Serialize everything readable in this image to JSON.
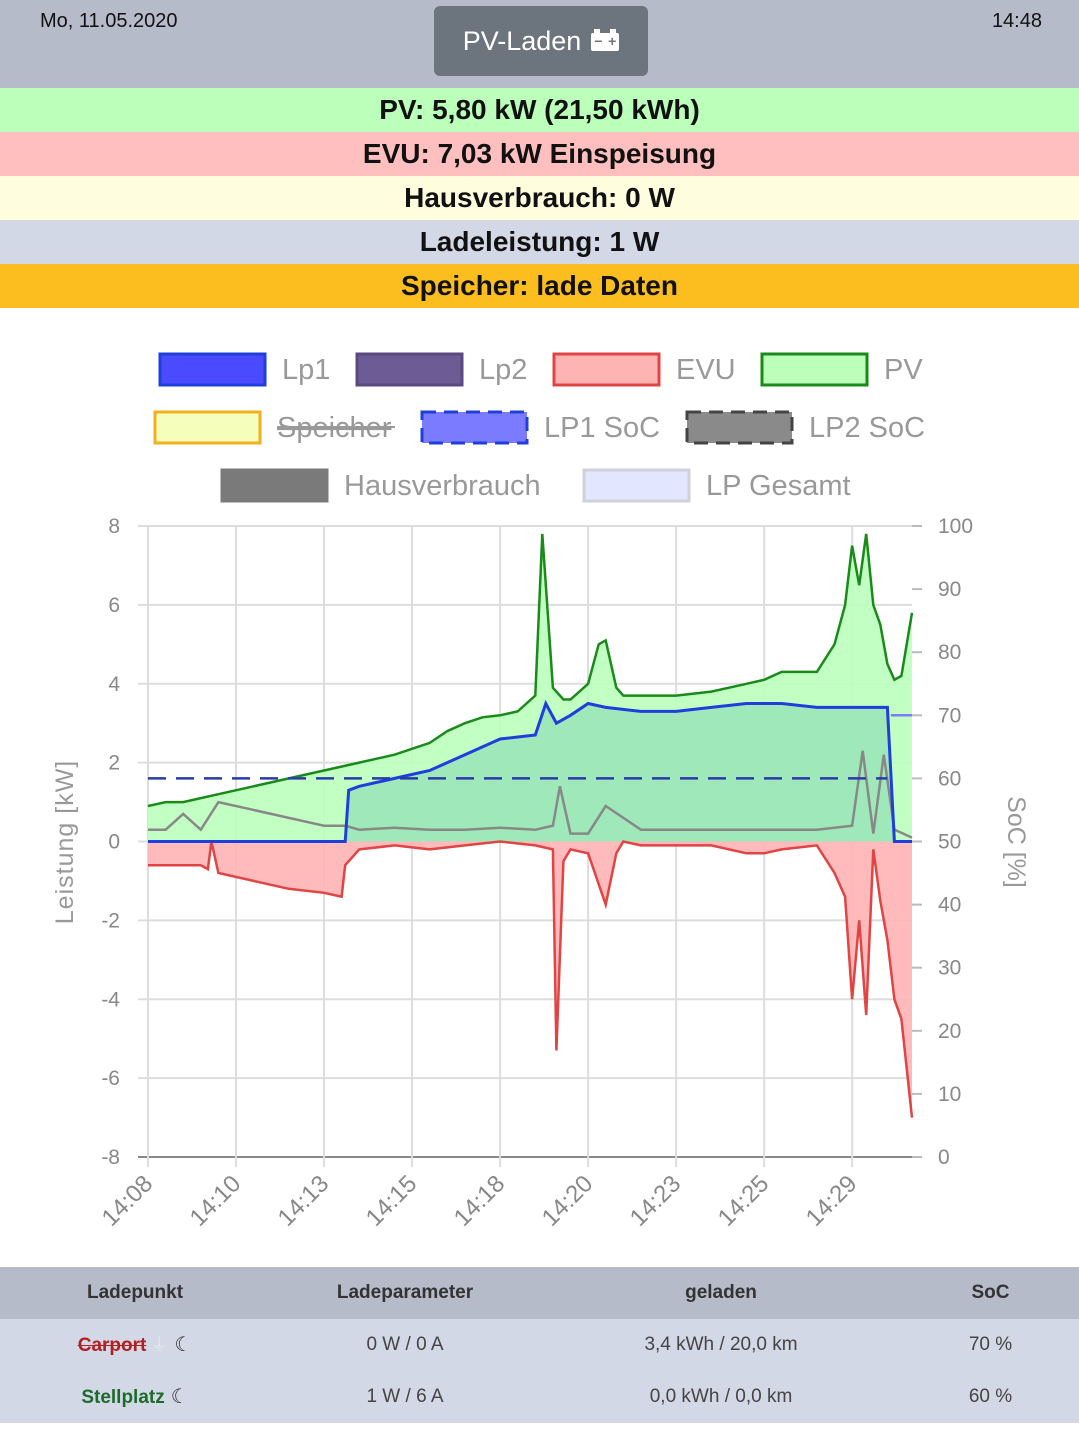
{
  "header": {
    "date": "Mo, 11.05.2020",
    "time": "14:48",
    "mode_label": "PV-Laden"
  },
  "status": {
    "pv": "PV: 5,80 kW (21,50 kWh)",
    "evu": "EVU: 7,03 kW Einspeisung",
    "haus": "Hausverbrauch: 0 W",
    "lade": "Ladeleistung: 1 W",
    "speicher": "Speicher: lade Daten"
  },
  "legend": {
    "lp1": "Lp1",
    "lp2": "Lp2",
    "evu": "EVU",
    "pv": "PV",
    "speicher": "Speicher",
    "lp1soc": "LP1 SoC",
    "lp2soc": "LP2 SoC",
    "haus": "Hausverbrauch",
    "lpges": "LP Gesamt"
  },
  "colors": {
    "lp1": "#1f3fdc",
    "lp2": "#6c5b95",
    "evu": "#e04444",
    "pv": "#1a8a1a",
    "pv_fill": "#bbffbb",
    "evu_fill": "#ffb4b4",
    "lp1_fill": "#9be6b8"
  },
  "chart_data": {
    "type": "line",
    "ylabel": "Leistung [kW]",
    "ylabel_right": "SoC [%]",
    "ylim": [
      -8,
      8
    ],
    "ylim_right": [
      0,
      100
    ],
    "yticks": [
      "8",
      "6",
      "4",
      "2",
      "0",
      "-2",
      "-4",
      "-6",
      "-8"
    ],
    "yticks_right": [
      "100",
      "90",
      "80",
      "70",
      "60",
      "50",
      "40",
      "30",
      "20",
      "10",
      "0"
    ],
    "xticks": [
      "14:08",
      "14:10",
      "14:13",
      "14:15",
      "14:18",
      "14:20",
      "14:23",
      "14:25",
      "14:29"
    ],
    "x_minutes": [
      0,
      2.5,
      5,
      7.5,
      10,
      12.5,
      15,
      17.5,
      20,
      20.95,
      21.7
    ],
    "series": [
      {
        "name": "PV",
        "x": [
          0,
          0.5,
          1,
          1.5,
          2,
          3,
          4,
          5,
          6,
          7,
          8,
          8.5,
          9,
          9.5,
          10,
          10.5,
          11,
          11.2,
          11.5,
          11.8,
          12,
          12.5,
          12.8,
          13,
          13.3,
          13.5,
          14,
          14.5,
          15,
          16,
          17,
          17.5,
          18,
          18.5,
          19,
          19.5,
          19.8,
          20,
          20.2,
          20.4,
          20.6,
          20.8,
          21,
          21.2,
          21.4,
          21.7
        ],
        "values": [
          0.9,
          1,
          1,
          1.1,
          1.2,
          1.4,
          1.6,
          1.8,
          2,
          2.2,
          2.5,
          2.8,
          3,
          3.15,
          3.2,
          3.3,
          3.7,
          7.8,
          3.9,
          3.6,
          3.6,
          4,
          5,
          5.1,
          3.9,
          3.7,
          3.7,
          3.7,
          3.7,
          3.8,
          4,
          4.1,
          4.3,
          4.3,
          4.3,
          5,
          6,
          7.5,
          6.5,
          7.8,
          6,
          5.5,
          4.5,
          4.1,
          4.2,
          5.8
        ]
      },
      {
        "name": "Lp1",
        "x": [
          0,
          5.6,
          5.7,
          6,
          7,
          8,
          8.5,
          9,
          9.5,
          10,
          11,
          11.3,
          11.6,
          12,
          12.5,
          13,
          14,
          15,
          16,
          17,
          18,
          19,
          20,
          21,
          21.2,
          21.7
        ],
        "values": [
          0,
          0,
          1.3,
          1.4,
          1.6,
          1.8,
          2,
          2.2,
          2.4,
          2.6,
          2.7,
          3.5,
          3,
          3.2,
          3.5,
          3.4,
          3.3,
          3.3,
          3.4,
          3.5,
          3.5,
          3.4,
          3.4,
          3.4,
          0,
          0
        ]
      },
      {
        "name": "EVU",
        "x": [
          0,
          0.5,
          1,
          1.5,
          1.7,
          1.8,
          2,
          3,
          4,
          5,
          5.5,
          5.6,
          6,
          7,
          8,
          9,
          10,
          11,
          11.5,
          11.6,
          11.8,
          12,
          12.5,
          13,
          13.3,
          13.5,
          14,
          15,
          16,
          17,
          17.5,
          18,
          19,
          19.5,
          19.8,
          20,
          20.2,
          20.4,
          20.6,
          20.8,
          21,
          21.2,
          21.4,
          21.7
        ],
        "values": [
          -0.6,
          -0.6,
          -0.6,
          -0.6,
          -0.7,
          0,
          -0.8,
          -1,
          -1.2,
          -1.3,
          -1.4,
          -0.6,
          -0.2,
          -0.1,
          -0.2,
          -0.1,
          0,
          -0.1,
          -0.2,
          -5.3,
          -0.5,
          -0.2,
          -0.3,
          -1.6,
          -0.3,
          0,
          -0.1,
          -0.1,
          -0.1,
          -0.3,
          -0.3,
          -0.2,
          -0.1,
          -0.8,
          -1.4,
          -4,
          -2,
          -4.4,
          -0.2,
          -1.5,
          -2.5,
          -4,
          -4.5,
          -7
        ]
      },
      {
        "name": "Hausverbrauch",
        "x": [
          0,
          0.5,
          1,
          1.5,
          2,
          5,
          5.6,
          6,
          7,
          8,
          9,
          10,
          11,
          11.5,
          11.7,
          12,
          12.5,
          13,
          14,
          15,
          16,
          17,
          18,
          19,
          20,
          20.3,
          20.6,
          20.9,
          21.2,
          21.7
        ],
        "values": [
          0.3,
          0.3,
          0.7,
          0.3,
          1,
          0.4,
          0.4,
          0.3,
          0.35,
          0.3,
          0.3,
          0.35,
          0.3,
          0.4,
          1.4,
          0.2,
          0.2,
          0.9,
          0.3,
          0.3,
          0.3,
          0.3,
          0.3,
          0.3,
          0.4,
          2.3,
          0.2,
          2.2,
          0.3,
          0.1
        ]
      },
      {
        "name": "LP1 SoC",
        "x": [
          0,
          21
        ],
        "values": [
          60,
          60
        ]
      },
      {
        "name": "LP2 SoC",
        "x": [
          21.1,
          21.7
        ],
        "values": [
          70,
          70
        ]
      }
    ]
  },
  "table": {
    "headers": [
      "Ladepunkt",
      "Ladeparameter",
      "geladen",
      "SoC"
    ],
    "rows": [
      {
        "name": "Carport",
        "params": "0 W / 0 A",
        "charged": "3,4 kWh / 20,0 km",
        "soc": "70 %"
      },
      {
        "name": "Stellplatz",
        "params": "1 W / 6 A",
        "charged": "0,0 kWh / 0,0 km",
        "soc": "60 %"
      }
    ]
  }
}
